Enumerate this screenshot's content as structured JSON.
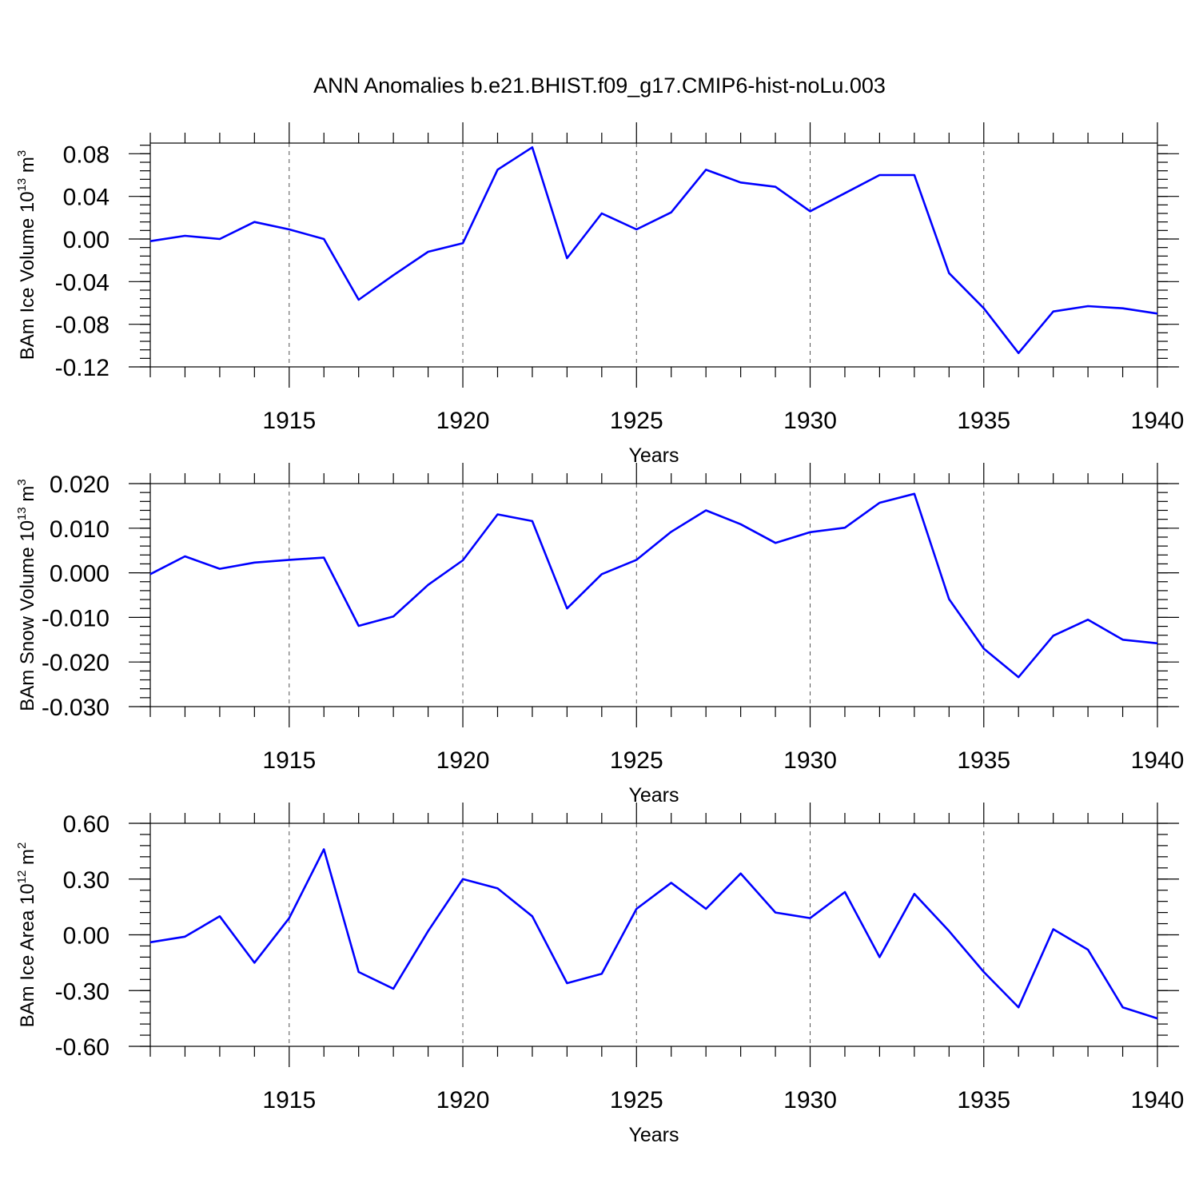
{
  "title": "ANN Anomalies b.e21.BHIST.f09_g17.CMIP6-hist-noLu.003",
  "chart_data": [
    {
      "type": "line",
      "ylabel": "BAm Ice Volume 10",
      "ylabel_exp": "13",
      "ylabel_unit": " m",
      "ylabel_unit_exp": "3",
      "xlabel": "Years",
      "xlim": [
        1911,
        1940
      ],
      "ylim": [
        -0.12,
        0.09
      ],
      "yticks": [
        -0.12,
        -0.08,
        -0.04,
        0.0,
        0.04,
        0.08
      ],
      "ytick_labels": [
        "-0.12",
        "-0.08",
        "-0.04",
        "0.00",
        "0.04",
        "0.08"
      ],
      "yminor_step": 0.008,
      "xticks": [
        1915,
        1920,
        1925,
        1930,
        1935,
        1940
      ],
      "xtick_labels": [
        "1915",
        "1920",
        "1925",
        "1930",
        "1935",
        "1940"
      ],
      "grid": "dashed vertical at major x ticks",
      "color": "#0000ff",
      "x": [
        1911,
        1912,
        1913,
        1914,
        1915,
        1916,
        1917,
        1918,
        1919,
        1920,
        1921,
        1922,
        1923,
        1924,
        1925,
        1926,
        1927,
        1928,
        1929,
        1930,
        1931,
        1932,
        1933,
        1934,
        1935,
        1936,
        1937,
        1938,
        1939,
        1940
      ],
      "y": [
        -0.002,
        0.003,
        0.0,
        0.016,
        0.009,
        0.0,
        -0.057,
        -0.034,
        -0.012,
        -0.004,
        0.065,
        0.086,
        -0.018,
        0.024,
        0.009,
        0.025,
        0.065,
        0.053,
        0.049,
        0.026,
        0.043,
        0.06,
        0.06,
        -0.032,
        -0.065,
        -0.107,
        -0.068,
        -0.063,
        -0.065,
        -0.07
      ]
    },
    {
      "type": "line",
      "ylabel": "BAm Snow Volume 10",
      "ylabel_exp": "13",
      "ylabel_unit": " m",
      "ylabel_unit_exp": "3",
      "xlabel": "Years",
      "xlim": [
        1911,
        1940
      ],
      "ylim": [
        -0.03,
        0.02
      ],
      "yticks": [
        -0.03,
        -0.02,
        -0.01,
        0.0,
        0.01,
        0.02
      ],
      "ytick_labels": [
        "-0.030",
        "-0.020",
        "-0.010",
        "0.000",
        "0.010",
        "0.020"
      ],
      "yminor_step": 0.002,
      "xticks": [
        1915,
        1920,
        1925,
        1930,
        1935,
        1940
      ],
      "xtick_labels": [
        "1915",
        "1920",
        "1925",
        "1930",
        "1935",
        "1940"
      ],
      "grid": "dashed vertical at major x ticks",
      "color": "#0000ff",
      "x": [
        1911,
        1912,
        1913,
        1914,
        1915,
        1916,
        1917,
        1918,
        1919,
        1920,
        1921,
        1922,
        1923,
        1924,
        1925,
        1926,
        1927,
        1928,
        1929,
        1930,
        1931,
        1932,
        1933,
        1934,
        1935,
        1936,
        1937,
        1938,
        1939,
        1940
      ],
      "y": [
        -0.0003,
        0.0037,
        0.0009,
        0.0023,
        0.0029,
        0.0034,
        -0.0119,
        -0.0098,
        -0.0027,
        0.0028,
        0.0131,
        0.0116,
        -0.008,
        -0.0003,
        0.0029,
        0.0092,
        0.014,
        0.0109,
        0.0067,
        0.0091,
        0.0101,
        0.0157,
        0.0177,
        -0.0059,
        -0.017,
        -0.0234,
        -0.0141,
        -0.0105,
        -0.015,
        -0.0158
      ]
    },
    {
      "type": "line",
      "ylabel": "BAm Ice Area 10",
      "ylabel_exp": "12",
      "ylabel_unit": " m",
      "ylabel_unit_exp": "2",
      "xlabel": "Years",
      "xlim": [
        1911,
        1940
      ],
      "ylim": [
        -0.6,
        0.6
      ],
      "yticks": [
        -0.6,
        -0.3,
        0.0,
        0.3,
        0.6
      ],
      "ytick_labels": [
        "-0.60",
        "-0.30",
        "0.00",
        "0.30",
        "0.60"
      ],
      "yminor_step": 0.06,
      "xticks": [
        1915,
        1920,
        1925,
        1930,
        1935,
        1940
      ],
      "xtick_labels": [
        "1915",
        "1920",
        "1925",
        "1930",
        "1935",
        "1940"
      ],
      "grid": "dashed vertical at major x ticks",
      "color": "#0000ff",
      "x": [
        1911,
        1912,
        1913,
        1914,
        1915,
        1916,
        1917,
        1918,
        1919,
        1920,
        1921,
        1922,
        1923,
        1924,
        1925,
        1926,
        1927,
        1928,
        1929,
        1930,
        1931,
        1932,
        1933,
        1934,
        1935,
        1936,
        1937,
        1938,
        1939,
        1940
      ],
      "y": [
        -0.04,
        -0.01,
        0.1,
        -0.15,
        0.09,
        0.46,
        -0.2,
        -0.29,
        0.02,
        0.3,
        0.25,
        0.1,
        -0.26,
        -0.21,
        0.14,
        0.28,
        0.14,
        0.33,
        0.12,
        0.09,
        0.23,
        -0.12,
        0.22,
        0.02,
        -0.2,
        -0.39,
        0.03,
        -0.08,
        -0.39,
        -0.45
      ]
    }
  ]
}
